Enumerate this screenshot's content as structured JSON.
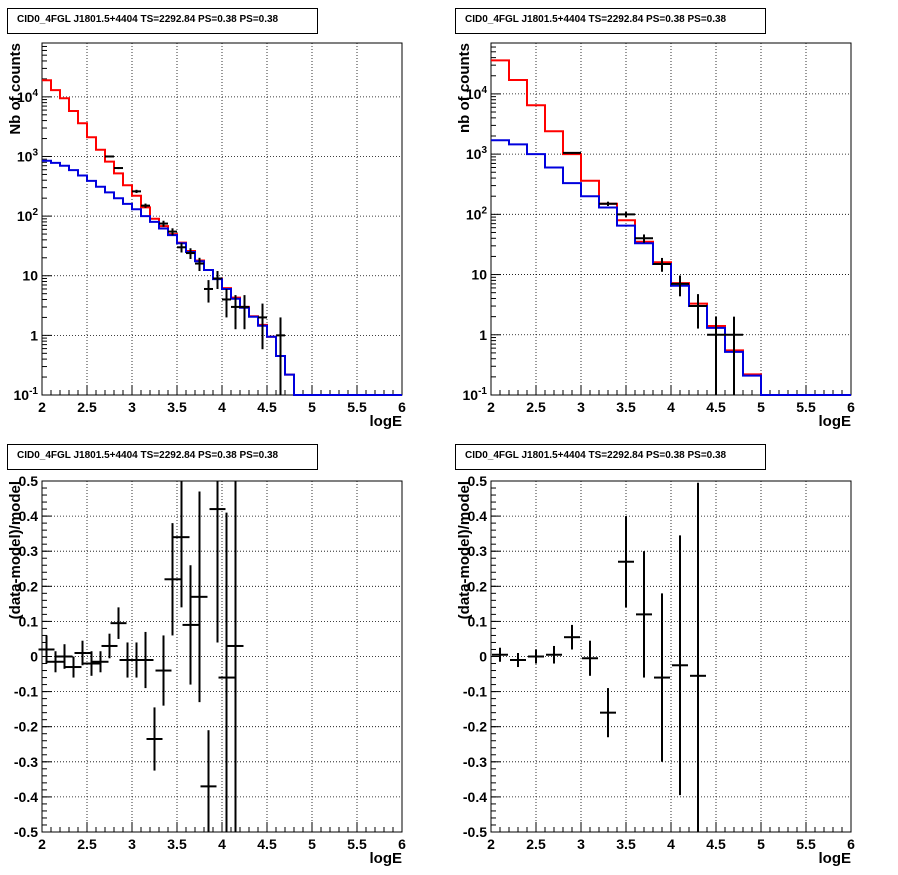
{
  "chart_data": [
    {
      "type": "line",
      "title": "CID0_4FGL J1801.5+4404 TS=2292.84 PS=0.38 PS=0.38",
      "xlabel": "logE",
      "ylabel": "Nb of counts",
      "log_y": true,
      "xlim": [
        2,
        6
      ],
      "ylim": [
        0.1,
        80000
      ],
      "grid": true,
      "x_ticks": [
        "2",
        "2.5",
        "3",
        "3.5",
        "4",
        "4.5",
        "5",
        "5.5",
        "6"
      ],
      "y_ticks": [
        "10^-1",
        "1",
        "10",
        "10^2",
        "10^3",
        "10^4"
      ],
      "bin_edges": [
        2.0,
        2.1,
        2.2,
        2.3,
        2.4,
        2.5,
        2.6,
        2.7,
        2.8,
        2.9,
        3.0,
        3.1,
        3.2,
        3.3,
        3.4,
        3.5,
        3.6,
        3.7,
        3.8,
        3.9,
        4.0,
        4.1,
        4.2,
        4.3,
        4.4,
        4.5,
        4.6,
        4.7,
        4.8,
        4.9,
        5.0,
        5.1,
        5.2,
        5.3,
        5.4,
        5.5,
        5.6,
        5.7,
        5.8,
        5.9,
        6.0
      ],
      "series": [
        {
          "color": "#ff0000",
          "style": "hist",
          "values": [
            19000,
            13000,
            9500,
            5800,
            3600,
            2100,
            1300,
            820,
            520,
            330,
            220,
            140,
            90,
            68,
            50,
            36,
            26,
            18,
            12.5,
            9,
            6.2,
            4.3,
            3.0,
            2.1,
            1.5,
            0.95,
            0.45,
            0.22,
            0.1,
            0.1,
            0.1,
            0.1,
            0.1,
            0.1,
            0.1,
            0.1,
            0.1,
            0.1,
            0.1,
            0.1
          ]
        },
        {
          "color": "#0000dd",
          "style": "hist",
          "values": [
            850,
            780,
            700,
            590,
            480,
            390,
            310,
            250,
            200,
            160,
            130,
            100,
            80,
            62,
            48,
            35,
            25,
            17.5,
            12.5,
            8.8,
            6.0,
            4.1,
            2.9,
            2.05,
            1.45,
            0.95,
            0.45,
            0.22,
            0.1,
            0.1,
            0.1,
            0.1,
            0.1,
            0.1,
            0.1,
            0.1,
            0.1,
            0.1,
            0.1,
            0.1
          ]
        },
        {
          "color": "#000000",
          "style": "points",
          "x": [
            2.75,
            2.85,
            3.05,
            3.15,
            3.35,
            3.45,
            3.55,
            3.65,
            3.75,
            3.85,
            3.95,
            4.05,
            4.15,
            4.25,
            4.45,
            4.65
          ],
          "values": [
            1000,
            640,
            260,
            150,
            75,
            55,
            30,
            24,
            16,
            6,
            9,
            4,
            3,
            3,
            2,
            1
          ]
        }
      ]
    },
    {
      "type": "line",
      "title": "CID0_4FGL J1801.5+4404 TS=2292.84 PS=0.38 PS=0.38",
      "xlabel": "logE",
      "ylabel": "nb of counts",
      "log_y": true,
      "xlim": [
        2,
        6
      ],
      "ylim": [
        0.1,
        70000
      ],
      "grid": true,
      "x_ticks": [
        "2",
        "2.5",
        "3",
        "3.5",
        "4",
        "4.5",
        "5",
        "5.5",
        "6"
      ],
      "y_ticks": [
        "10^-1",
        "1",
        "10",
        "10^2",
        "10^3",
        "10^4"
      ],
      "bin_edges": [
        2.0,
        2.2,
        2.4,
        2.6,
        2.8,
        3.0,
        3.2,
        3.4,
        3.6,
        3.8,
        4.0,
        4.2,
        4.4,
        4.6,
        4.8,
        5.0,
        5.2,
        5.4,
        5.6,
        5.8,
        6.0
      ],
      "series": [
        {
          "color": "#ff0000",
          "style": "hist",
          "values": [
            36000,
            17000,
            6500,
            2400,
            1000,
            360,
            150,
            80,
            35,
            16,
            7.2,
            3.3,
            1.4,
            0.55,
            0.22,
            0.1,
            0.1,
            0.1,
            0.1,
            0.1
          ]
        },
        {
          "color": "#0000dd",
          "style": "hist",
          "values": [
            1700,
            1450,
            1000,
            600,
            330,
            200,
            130,
            65,
            33,
            15,
            6.5,
            3.0,
            1.3,
            0.52,
            0.21,
            0.1,
            0.1,
            0.1,
            0.1,
            0.1
          ]
        },
        {
          "color": "#000000",
          "style": "points",
          "x": [
            2.9,
            3.3,
            3.5,
            3.7,
            3.9,
            4.1,
            4.3,
            4.5,
            4.7
          ],
          "values": [
            1050,
            150,
            100,
            40,
            15,
            7,
            3,
            1,
            1
          ]
        }
      ]
    },
    {
      "type": "scatter",
      "title": "CID0_4FGL J1801.5+4404 TS=2292.84 PS=0.38 PS=0.38",
      "xlabel": "logE",
      "ylabel": "(data-model)/model",
      "xlim": [
        2,
        6
      ],
      "ylim": [
        -0.5,
        0.5
      ],
      "grid": true,
      "x_ticks": [
        "2",
        "2.5",
        "3",
        "3.5",
        "4",
        "4.5",
        "5",
        "5.5",
        "6"
      ],
      "y_ticks": [
        "-0.5",
        "-0.4",
        "-0.3",
        "-0.2",
        "-0.1",
        "0",
        "0.1",
        "0.2",
        "0.3",
        "0.4",
        "0.5"
      ],
      "points": [
        {
          "x": 2.05,
          "y": 0.02,
          "err": 0.04
        },
        {
          "x": 2.15,
          "y": -0.015,
          "err": 0.03
        },
        {
          "x": 2.25,
          "y": 0.0,
          "err": 0.035
        },
        {
          "x": 2.35,
          "y": -0.03,
          "err": 0.03
        },
        {
          "x": 2.45,
          "y": 0.01,
          "err": 0.035
        },
        {
          "x": 2.55,
          "y": -0.02,
          "err": 0.035
        },
        {
          "x": 2.65,
          "y": -0.015,
          "err": 0.03
        },
        {
          "x": 2.75,
          "y": 0.03,
          "err": 0.035
        },
        {
          "x": 2.85,
          "y": 0.095,
          "err": 0.045
        },
        {
          "x": 2.95,
          "y": -0.01,
          "err": 0.05
        },
        {
          "x": 3.05,
          "y": -0.01,
          "err": 0.05
        },
        {
          "x": 3.15,
          "y": -0.01,
          "err": 0.08
        },
        {
          "x": 3.25,
          "y": -0.235,
          "err": 0.09
        },
        {
          "x": 3.35,
          "y": -0.04,
          "err": 0.1
        },
        {
          "x": 3.45,
          "y": 0.22,
          "err": 0.16
        },
        {
          "x": 3.55,
          "y": 0.34,
          "err": 0.2
        },
        {
          "x": 3.65,
          "y": 0.09,
          "err": 0.17
        },
        {
          "x": 3.75,
          "y": 0.17,
          "err": 0.3
        },
        {
          "x": 3.85,
          "y": -0.37,
          "err": 0.16
        },
        {
          "x": 3.95,
          "y": 0.42,
          "err": 0.38
        },
        {
          "x": 4.05,
          "y": -0.06,
          "err": 0.47
        },
        {
          "x": 4.15,
          "y": 0.03,
          "err": 0.6
        }
      ]
    },
    {
      "type": "scatter",
      "title": "CID0_4FGL J1801.5+4404 TS=2292.84 PS=0.38 PS=0.38",
      "xlabel": "logE",
      "ylabel": "(data-model)/model",
      "xlim": [
        2,
        6
      ],
      "ylim": [
        -0.5,
        0.5
      ],
      "grid": true,
      "x_ticks": [
        "2",
        "2.5",
        "3",
        "3.5",
        "4",
        "4.5",
        "5",
        "5.5",
        "6"
      ],
      "y_ticks": [
        "-0.5",
        "-0.4",
        "-0.3",
        "-0.2",
        "-0.1",
        "0",
        "0.1",
        "0.2",
        "0.3",
        "0.4",
        "0.5"
      ],
      "points": [
        {
          "x": 2.1,
          "y": 0.005,
          "err": 0.02
        },
        {
          "x": 2.3,
          "y": -0.01,
          "err": 0.02
        },
        {
          "x": 2.5,
          "y": 0.0,
          "err": 0.02
        },
        {
          "x": 2.7,
          "y": 0.005,
          "err": 0.025
        },
        {
          "x": 2.9,
          "y": 0.055,
          "err": 0.035
        },
        {
          "x": 3.1,
          "y": -0.005,
          "err": 0.05
        },
        {
          "x": 3.3,
          "y": -0.16,
          "err": 0.07
        },
        {
          "x": 3.5,
          "y": 0.27,
          "err": 0.13
        },
        {
          "x": 3.7,
          "y": 0.12,
          "err": 0.18
        },
        {
          "x": 3.9,
          "y": -0.06,
          "err": 0.24
        },
        {
          "x": 4.1,
          "y": -0.025,
          "err": 0.37
        },
        {
          "x": 4.3,
          "y": -0.055,
          "err": 0.55
        }
      ]
    }
  ]
}
